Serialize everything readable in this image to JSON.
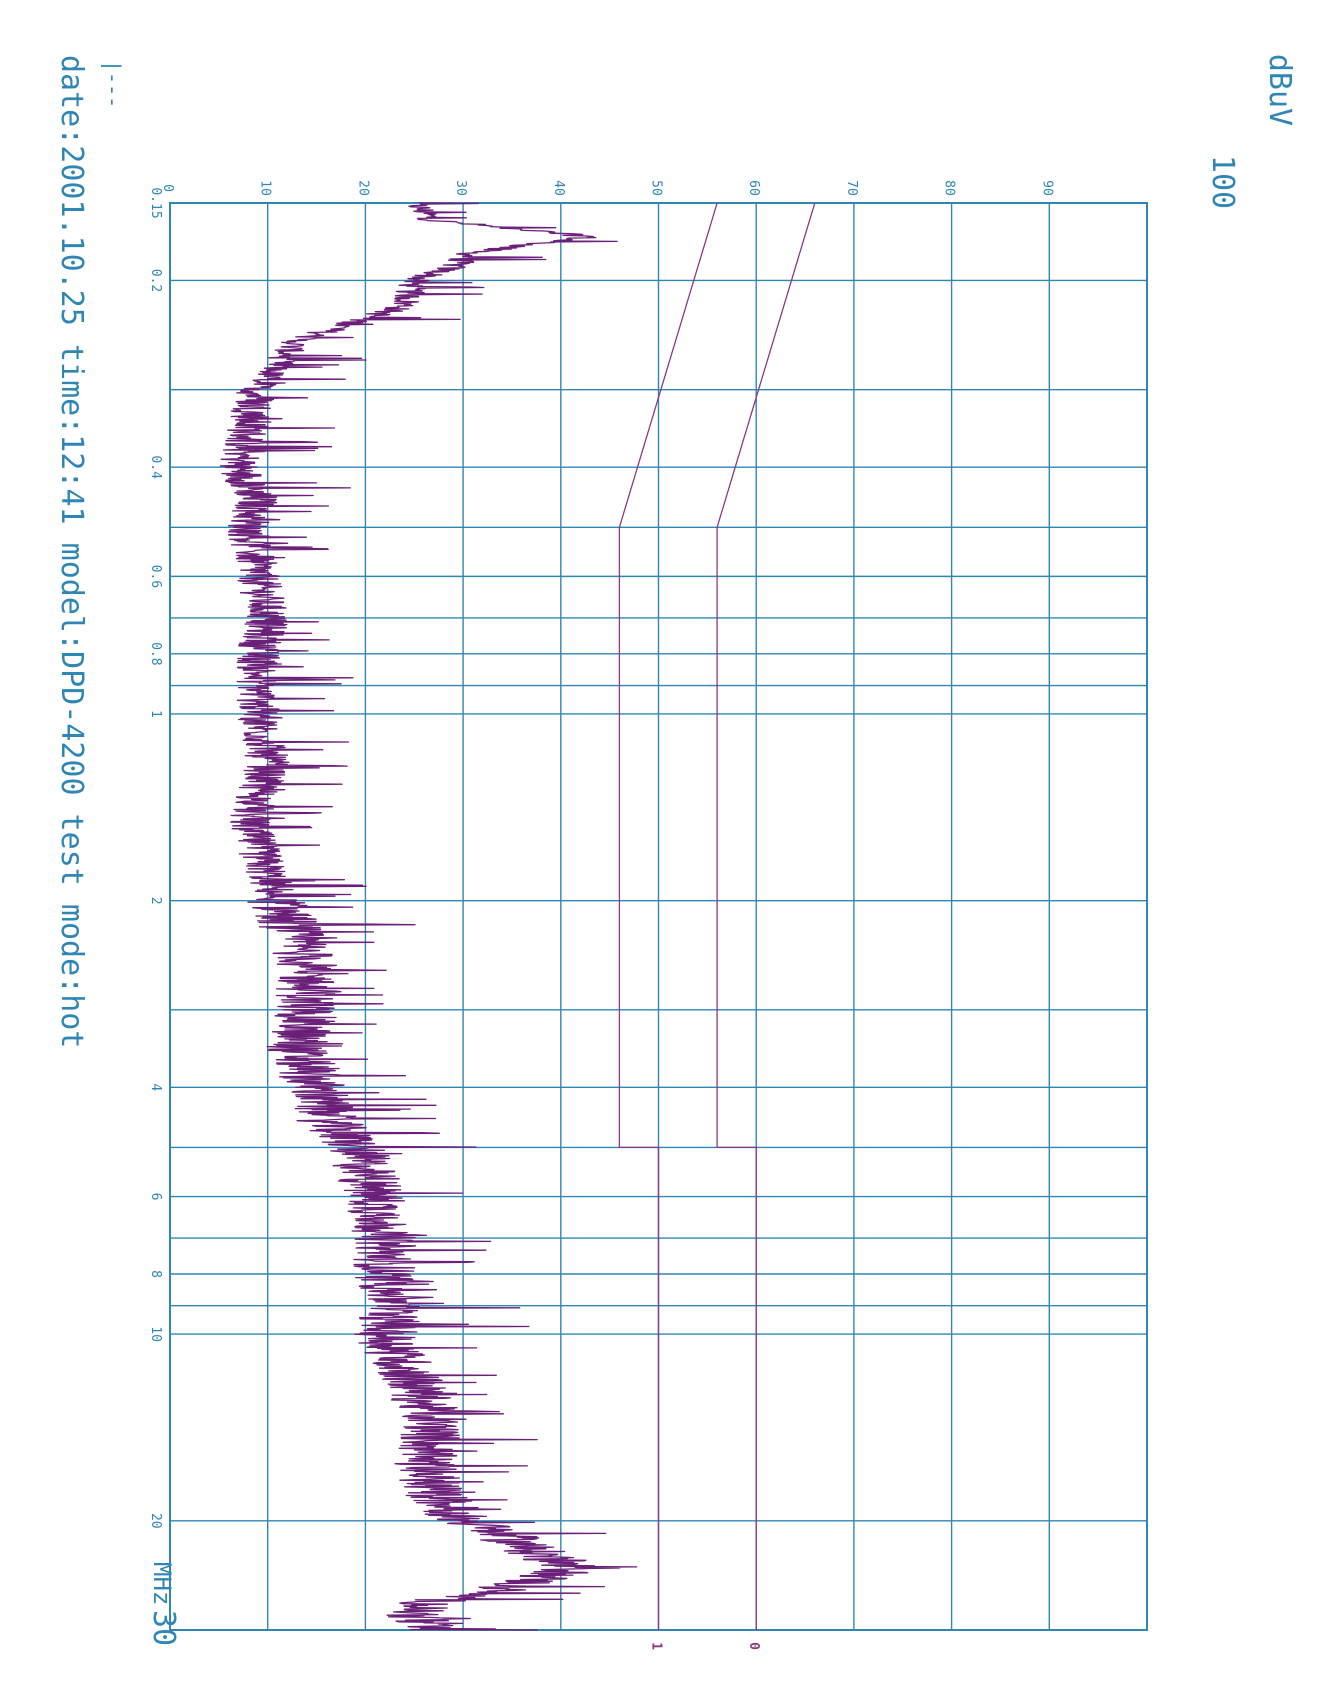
{
  "chart_data": {
    "type": "line",
    "orientation": "rotated-90",
    "ylabel": "dBuV",
    "y_top_label": "100",
    "xunit": "MHz",
    "x_end_label": "30",
    "x_scale": "log",
    "xlim": [
      0.15,
      30
    ],
    "ylim": [
      0,
      100
    ],
    "grid": true,
    "y_ticks": [
      "0",
      "10",
      "20",
      "30",
      "40",
      "50",
      "60",
      "70",
      "80",
      "90"
    ],
    "x_ticks": [
      "0.15",
      "0.2",
      "0.4",
      "0.6",
      "0.8",
      "1",
      "2",
      "4",
      "6",
      "8",
      "10",
      "20"
    ],
    "limit_line_labels": {
      "average": "1",
      "quasi_peak": "0"
    },
    "series": [
      {
        "name": "",
        "role": "measured emission",
        "color": "#6a1f78",
        "x": [
          0.15,
          0.16,
          0.17,
          0.18,
          0.19,
          0.2,
          0.22,
          0.25,
          0.3,
          0.35,
          0.4,
          0.45,
          0.5,
          0.6,
          0.7,
          0.8,
          1,
          1.2,
          1.5,
          2,
          2.5,
          3,
          3.5,
          4,
          4.5,
          5,
          6,
          7,
          8,
          9,
          10,
          12,
          14,
          16,
          18,
          20,
          21,
          22,
          23,
          24,
          25,
          26,
          27,
          28,
          30
        ],
        "values": [
          25,
          27,
          43,
          31,
          29,
          25,
          24,
          13,
          9,
          8,
          7,
          9,
          8,
          9,
          10,
          9,
          9,
          10,
          8,
          11,
          14,
          14,
          13,
          15,
          16,
          19,
          21,
          22,
          22,
          23,
          22,
          25,
          27,
          26,
          27,
          30,
          34,
          36,
          39,
          41,
          37,
          33,
          27,
          25,
          26
        ]
      },
      {
        "name": "",
        "role": "quasi-peak limit",
        "color": "#8a3a80",
        "x": [
          0.15,
          0.5,
          0.5,
          5,
          5,
          30
        ],
        "values": [
          66,
          56,
          56,
          56,
          60,
          60
        ]
      },
      {
        "name": "",
        "role": "average limit",
        "color": "#8a3a80",
        "x": [
          0.15,
          0.5,
          0.5,
          5,
          5,
          30
        ],
        "values": [
          56,
          46,
          46,
          46,
          50,
          50
        ]
      }
    ]
  },
  "footer": {
    "marker": "|---",
    "info": "date:2001.10.25 time:12:41 model:DPD-4200 test mode:hot"
  },
  "colors": {
    "grid": "#2f86b5",
    "trace": "#6a1f78",
    "limit": "#8a3a80"
  }
}
